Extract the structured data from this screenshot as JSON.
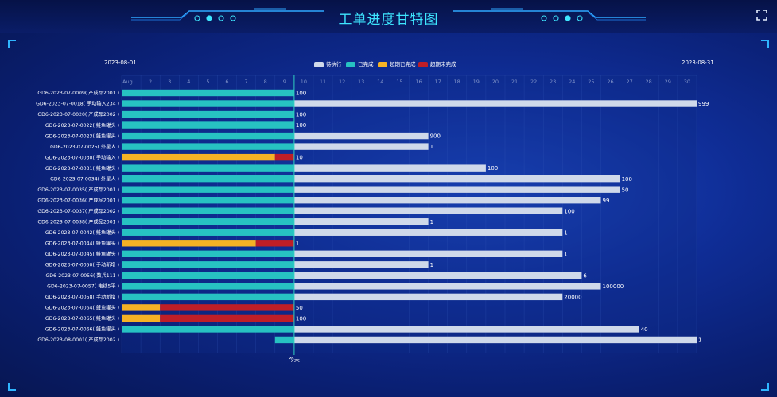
{
  "header": {
    "title": "工单进度甘特图"
  },
  "colors": {
    "pending": "#cfd9ea",
    "completed": "#27c2c2",
    "overdue_completed": "#f5b225",
    "overdue_incomplete": "#bf1e27",
    "today_line": "#30d0c0"
  },
  "chart_data": {
    "type": "gantt",
    "start_date_label": "2023-08-01",
    "end_date_label": "2023-08-31",
    "today_label": "今天",
    "today_day": 10,
    "x_ticks": [
      "Aug",
      "2",
      "3",
      "4",
      "5",
      "6",
      "7",
      "8",
      "9",
      "10",
      "11",
      "12",
      "13",
      "14",
      "15",
      "16",
      "17",
      "18",
      "19",
      "20",
      "21",
      "22",
      "23",
      "24",
      "25",
      "26",
      "27",
      "28",
      "29",
      "30"
    ],
    "legend": [
      {
        "name": "待执行",
        "key": "pending"
      },
      {
        "name": "已完成",
        "key": "completed"
      },
      {
        "name": "超期已完成",
        "key": "overdue_completed"
      },
      {
        "name": "超期未完成",
        "key": "overdue_incomplete"
      }
    ],
    "rows": [
      {
        "label": "GD6-2023-07-0009( 产成品2001 )",
        "value": "100",
        "segments": [
          {
            "key": "completed",
            "start": 1,
            "end": 10
          }
        ]
      },
      {
        "label": "GD6-2023-07-0018( 手动输入234 )",
        "value": "999",
        "segments": [
          {
            "key": "completed",
            "start": 1,
            "end": 10
          },
          {
            "key": "pending",
            "start": 10,
            "end": 31
          }
        ]
      },
      {
        "label": "GD6-2023-07-0020( 产成品2002 )",
        "value": "100",
        "segments": [
          {
            "key": "completed",
            "start": 1,
            "end": 10
          }
        ]
      },
      {
        "label": "GD6-2023-07-0022( 鲑鱼罐头 )",
        "value": "100",
        "segments": [
          {
            "key": "completed",
            "start": 1,
            "end": 10
          }
        ]
      },
      {
        "label": "GD6-2023-07-0023( 鲑鱼罐头 )",
        "value": "900",
        "segments": [
          {
            "key": "completed",
            "start": 1,
            "end": 10
          },
          {
            "key": "pending",
            "start": 10,
            "end": 17
          }
        ]
      },
      {
        "label": "GD6-2023-07-0025( 外星人 )",
        "value": "1",
        "segments": [
          {
            "key": "completed",
            "start": 1,
            "end": 10
          },
          {
            "key": "pending",
            "start": 10,
            "end": 17
          }
        ]
      },
      {
        "label": "GD6-2023-07-0030( 手动输入 )",
        "value": "10",
        "segments": [
          {
            "key": "overdue_completed",
            "start": 1,
            "end": 9
          },
          {
            "key": "overdue_incomplete",
            "start": 9,
            "end": 10
          }
        ]
      },
      {
        "label": "GD6-2023-07-0031( 鲑鱼罐头 )",
        "value": "100",
        "segments": [
          {
            "key": "completed",
            "start": 1,
            "end": 10
          },
          {
            "key": "pending",
            "start": 10,
            "end": 20
          }
        ]
      },
      {
        "label": "GD6-2023-07-0034( 外星人 )",
        "value": "100",
        "segments": [
          {
            "key": "completed",
            "start": 1,
            "end": 10
          },
          {
            "key": "pending",
            "start": 10,
            "end": 27
          }
        ]
      },
      {
        "label": "GD6-2023-07-0035( 产成品2001 )",
        "value": "50",
        "segments": [
          {
            "key": "completed",
            "start": 1,
            "end": 10
          },
          {
            "key": "pending",
            "start": 10,
            "end": 27
          }
        ]
      },
      {
        "label": "GD6-2023-07-0036( 产成品2001 )",
        "value": "99",
        "segments": [
          {
            "key": "completed",
            "start": 1,
            "end": 10
          },
          {
            "key": "pending",
            "start": 10,
            "end": 26
          }
        ]
      },
      {
        "label": "GD6-2023-07-0037( 产成品2002 )",
        "value": "100",
        "segments": [
          {
            "key": "completed",
            "start": 1,
            "end": 10
          },
          {
            "key": "pending",
            "start": 10,
            "end": 24
          }
        ]
      },
      {
        "label": "GD6-2023-07-0038( 产成品2001 )",
        "value": "1",
        "segments": [
          {
            "key": "completed",
            "start": 1,
            "end": 10
          },
          {
            "key": "pending",
            "start": 10,
            "end": 17
          }
        ]
      },
      {
        "label": "GD6-2023-07-0042( 鲑鱼罐头 )",
        "value": "1",
        "segments": [
          {
            "key": "completed",
            "start": 1,
            "end": 10
          },
          {
            "key": "pending",
            "start": 10,
            "end": 24
          }
        ]
      },
      {
        "label": "GD6-2023-07-0044( 鲑鱼罐头 )",
        "value": "1",
        "segments": [
          {
            "key": "overdue_completed",
            "start": 1,
            "end": 8
          },
          {
            "key": "overdue_incomplete",
            "start": 8,
            "end": 10
          }
        ]
      },
      {
        "label": "GD6-2023-07-0045( 鲑鱼罐头 )",
        "value": "1",
        "segments": [
          {
            "key": "completed",
            "start": 1,
            "end": 10
          },
          {
            "key": "pending",
            "start": 10,
            "end": 24
          }
        ]
      },
      {
        "label": "GD6-2023-07-0050( 手动新增 )",
        "value": "1",
        "segments": [
          {
            "key": "completed",
            "start": 1,
            "end": 10
          },
          {
            "key": "pending",
            "start": 10,
            "end": 17
          }
        ]
      },
      {
        "label": "GD6-2023-07-0056( 数兵111 )",
        "value": "6",
        "segments": [
          {
            "key": "completed",
            "start": 1,
            "end": 10
          },
          {
            "key": "pending",
            "start": 10,
            "end": 25
          }
        ]
      },
      {
        "label": "GD6-2023-07-0057( 电线5平 )",
        "value": "100000",
        "segments": [
          {
            "key": "completed",
            "start": 1,
            "end": 10
          },
          {
            "key": "pending",
            "start": 10,
            "end": 26
          }
        ]
      },
      {
        "label": "GD6-2023-07-0058( 手动新增 )",
        "value": "20000",
        "segments": [
          {
            "key": "completed",
            "start": 1,
            "end": 10
          },
          {
            "key": "pending",
            "start": 10,
            "end": 24
          }
        ]
      },
      {
        "label": "GD6-2023-07-0064( 鲑鱼罐头 )",
        "value": "50",
        "segments": [
          {
            "key": "overdue_completed",
            "start": 1,
            "end": 3
          },
          {
            "key": "overdue_incomplete",
            "start": 3,
            "end": 10
          }
        ]
      },
      {
        "label": "GD6-2023-07-0065( 鲑鱼罐头 )",
        "value": "100",
        "segments": [
          {
            "key": "overdue_completed",
            "start": 1,
            "end": 3
          },
          {
            "key": "overdue_incomplete",
            "start": 3,
            "end": 10
          }
        ]
      },
      {
        "label": "GD6-2023-07-0066( 鲑鱼罐头 )",
        "value": "40",
        "segments": [
          {
            "key": "completed",
            "start": 1,
            "end": 10
          },
          {
            "key": "pending",
            "start": 10,
            "end": 28
          }
        ]
      },
      {
        "label": "GD6-2023-08-0001( 产成品2002 )",
        "value": "1",
        "segments": [
          {
            "key": "completed",
            "start": 9,
            "end": 10
          },
          {
            "key": "pending",
            "start": 10,
            "end": 31
          }
        ]
      }
    ]
  }
}
